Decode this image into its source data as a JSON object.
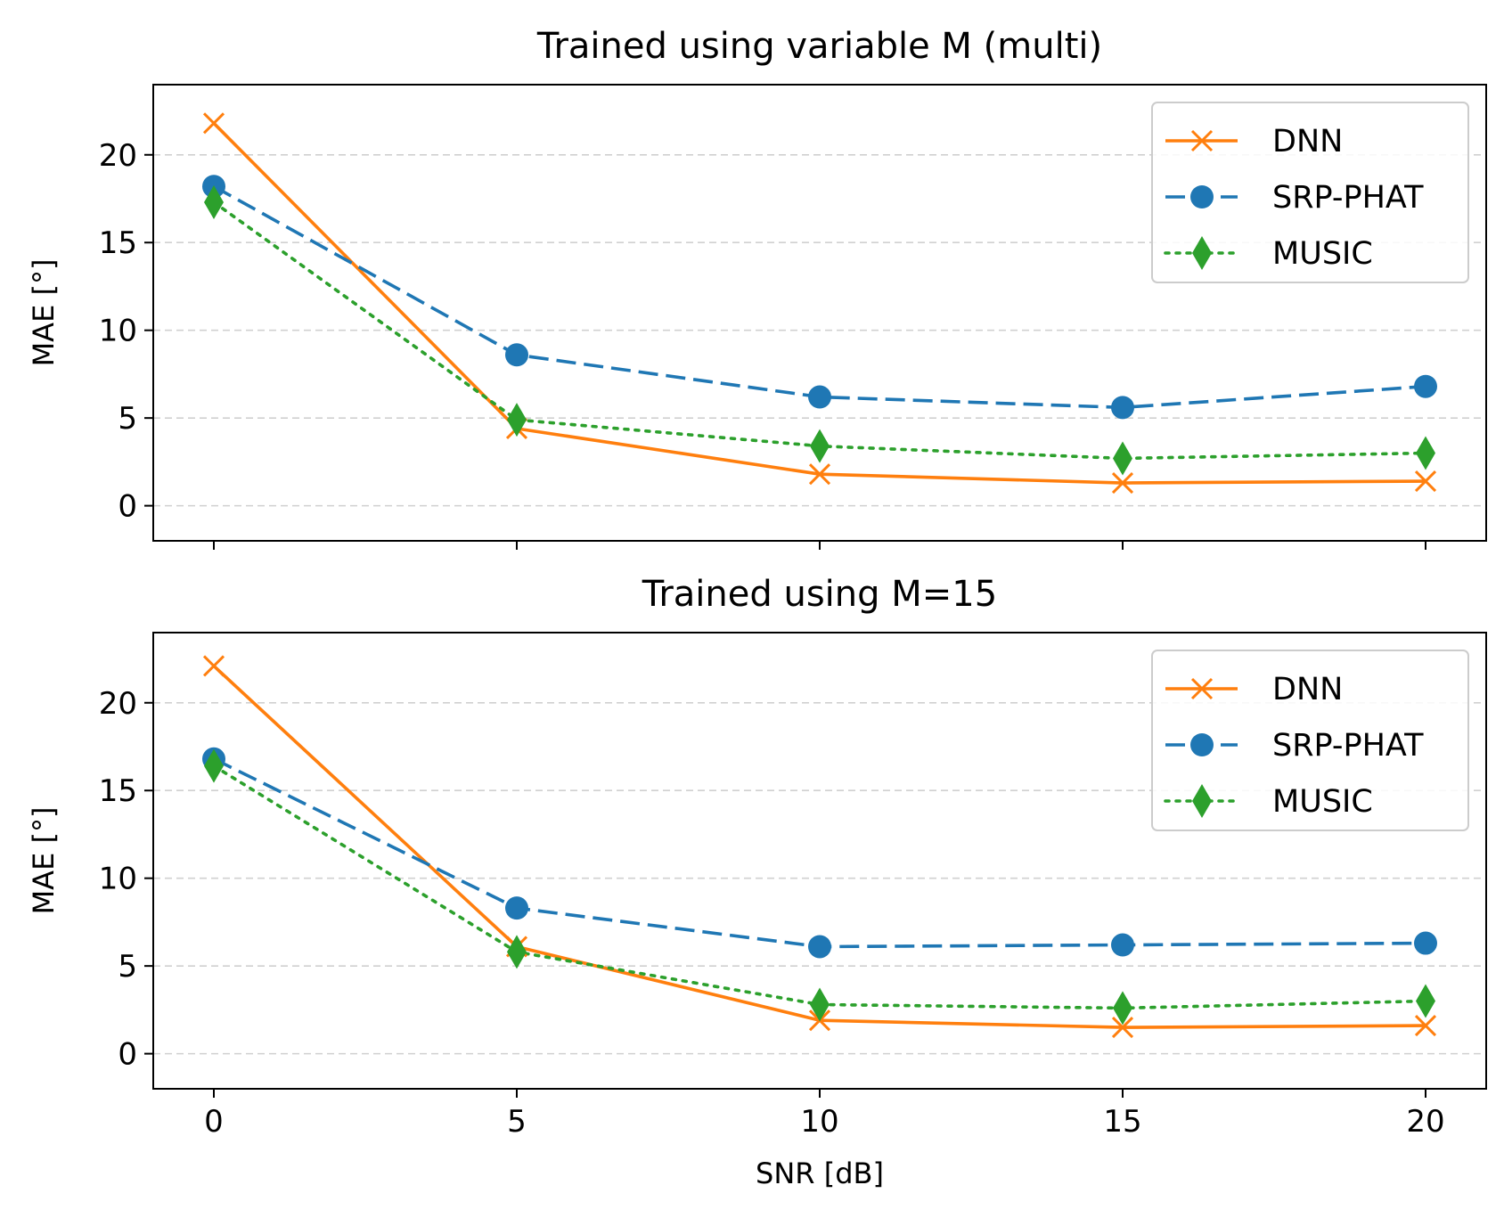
{
  "chart_data": [
    {
      "type": "line",
      "title": "Trained using variable M (multi)",
      "xlabel": "",
      "ylabel": "MAE [°]",
      "x": [
        0,
        5,
        10,
        15,
        20
      ],
      "xticks": [
        0,
        5,
        10,
        15,
        20
      ],
      "xtick_labels_visible": false,
      "yticks": [
        0,
        5,
        10,
        15,
        20
      ],
      "xlim": [
        -1,
        21
      ],
      "ylim": [
        -2,
        24
      ],
      "grid": "y-dashed",
      "legend_position": "upper right",
      "series": [
        {
          "name": "DNN",
          "values": [
            21.8,
            4.4,
            1.8,
            1.3,
            1.4
          ],
          "color": "#ff7f0e",
          "linestyle": "solid",
          "marker": "x"
        },
        {
          "name": "SRP-PHAT",
          "values": [
            18.2,
            8.6,
            6.2,
            5.6,
            6.8
          ],
          "color": "#1f77b4",
          "linestyle": "dashed",
          "marker": "circle"
        },
        {
          "name": "MUSIC",
          "values": [
            17.3,
            4.9,
            3.4,
            2.7,
            3.0
          ],
          "color": "#2ca02c",
          "linestyle": "dotted",
          "marker": "diamond"
        }
      ]
    },
    {
      "type": "line",
      "title": "Trained using M=15",
      "xlabel": "SNR [dB]",
      "ylabel": "MAE [°]",
      "x": [
        0,
        5,
        10,
        15,
        20
      ],
      "xticks": [
        0,
        5,
        10,
        15,
        20
      ],
      "xtick_labels_visible": true,
      "yticks": [
        0,
        5,
        10,
        15,
        20
      ],
      "xlim": [
        -1,
        21
      ],
      "ylim": [
        -2,
        24
      ],
      "grid": "y-dashed",
      "legend_position": "upper right",
      "series": [
        {
          "name": "DNN",
          "values": [
            22.1,
            6.1,
            1.9,
            1.5,
            1.6
          ],
          "color": "#ff7f0e",
          "linestyle": "solid",
          "marker": "x"
        },
        {
          "name": "SRP-PHAT",
          "values": [
            16.8,
            8.3,
            6.1,
            6.2,
            6.3
          ],
          "color": "#1f77b4",
          "linestyle": "dashed",
          "marker": "circle"
        },
        {
          "name": "MUSIC",
          "values": [
            16.4,
            5.8,
            2.8,
            2.6,
            3.0
          ],
          "color": "#2ca02c",
          "linestyle": "dotted",
          "marker": "diamond"
        }
      ]
    }
  ]
}
